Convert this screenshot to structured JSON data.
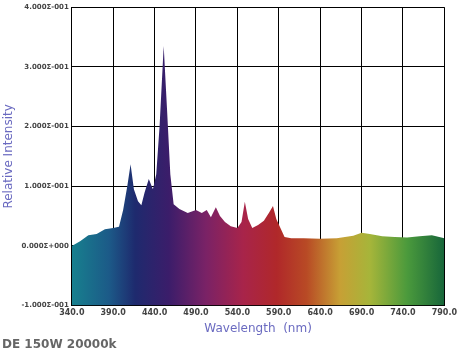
{
  "chart_data": {
    "type": "area",
    "title": "DE 150W 20000k",
    "xlabel": "Wavelength  (nm)",
    "ylabel": "Relative Intensity",
    "x": [
      340,
      350,
      360,
      370,
      380,
      390,
      397,
      402,
      407,
      411,
      415,
      420,
      424,
      428,
      433,
      438,
      442,
      446,
      451,
      455,
      459,
      463,
      470,
      480,
      490,
      497,
      503,
      508,
      514,
      519,
      525,
      532,
      540,
      545,
      549,
      553,
      558,
      565,
      572,
      578,
      583,
      587,
      592,
      597,
      605,
      620,
      640,
      660,
      680,
      690,
      700,
      715,
      730,
      745,
      760,
      775,
      790
    ],
    "values": [
      0.0,
      0.008,
      0.018,
      0.02,
      0.028,
      0.03,
      0.032,
      0.06,
      0.1,
      0.137,
      0.095,
      0.075,
      0.068,
      0.09,
      0.112,
      0.095,
      0.12,
      0.2,
      0.335,
      0.23,
      0.12,
      0.07,
      0.062,
      0.055,
      0.06,
      0.055,
      0.06,
      0.048,
      0.065,
      0.05,
      0.04,
      0.033,
      0.03,
      0.04,
      0.074,
      0.045,
      0.03,
      0.035,
      0.042,
      0.055,
      0.067,
      0.045,
      0.03,
      0.015,
      0.013,
      0.013,
      0.012,
      0.013,
      0.017,
      0.022,
      0.02,
      0.016,
      0.015,
      0.014,
      0.016,
      0.018,
      0.013
    ],
    "xlim": [
      340,
      790
    ],
    "xticks": [
      {
        "value": 340,
        "label": "340.0"
      },
      {
        "value": 390,
        "label": "390.0"
      },
      {
        "value": 440,
        "label": "440.0"
      },
      {
        "value": 490,
        "label": "490.0"
      },
      {
        "value": 540,
        "label": "540.0"
      },
      {
        "value": 590,
        "label": "590.0"
      },
      {
        "value": 640,
        "label": "640.0"
      },
      {
        "value": 690,
        "label": "690.0"
      },
      {
        "value": 740,
        "label": "740.0"
      },
      {
        "value": 790,
        "label": "790.0"
      }
    ],
    "ylim": [
      -0.1,
      0.4
    ],
    "yticks": [
      {
        "value": -0.1,
        "label": "-1.000Σ-001"
      },
      {
        "value": 0,
        "label": "0.000Σ+000"
      },
      {
        "value": 0.1,
        "label": "1.000Σ-001"
      },
      {
        "value": 0.2,
        "label": "2.000Σ-001"
      },
      {
        "value": 0.3,
        "label": "3.000Σ-001"
      },
      {
        "value": 0.4,
        "label": "4.000Σ-001"
      }
    ],
    "grid": true
  }
}
